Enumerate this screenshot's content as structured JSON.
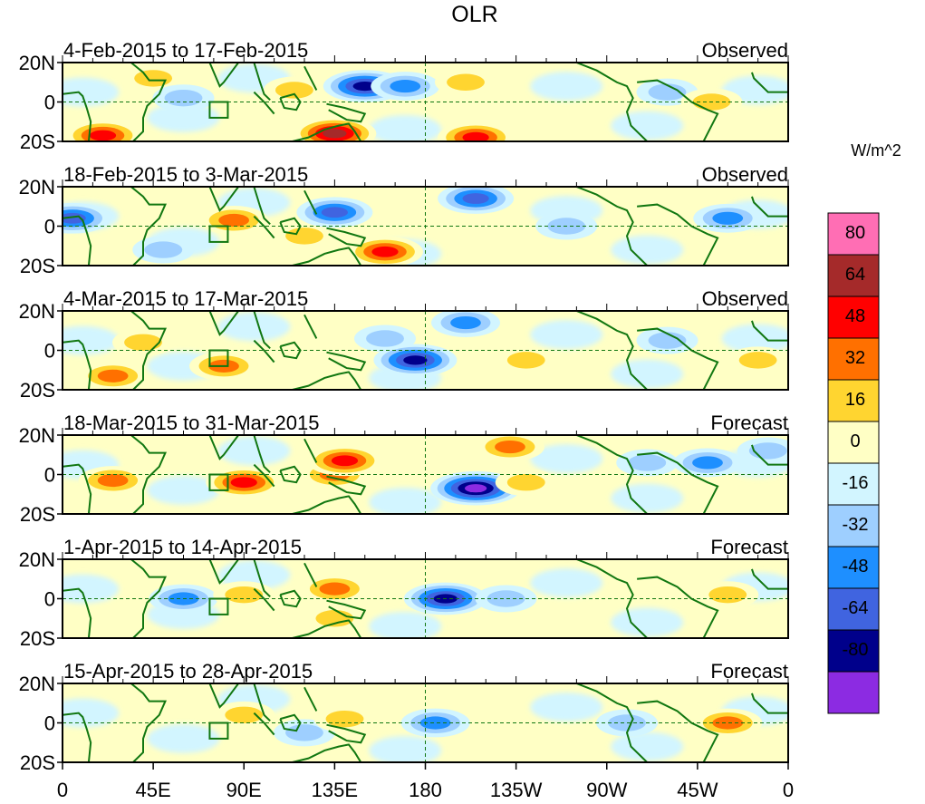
{
  "chart_data": {
    "type": "heatmap",
    "title": "OLR",
    "colorbar": {
      "unit_label": "W/m^2",
      "levels": [
        80,
        64,
        48,
        32,
        16,
        0,
        -16,
        -32,
        -48,
        -64,
        -80
      ],
      "colors": [
        "#ff6eb4",
        "#a52a2a",
        "#ff0000",
        "#ff7000",
        "#ffd530",
        "#ffffc5",
        "#d2f5ff",
        "#9ecfff",
        "#1e8fff",
        "#4064e0",
        "#00008b",
        "#8c2be2"
      ]
    },
    "x_axis": {
      "tick_labels": [
        "0",
        "45E",
        "90E",
        "135E",
        "180",
        "135W",
        "90W",
        "45W",
        "0"
      ],
      "lon_range": [
        0,
        360
      ]
    },
    "y_axis": {
      "tick_labels": [
        "20N",
        "0",
        "20S"
      ],
      "lat_range": [
        -20,
        20
      ]
    },
    "panels": [
      {
        "period": "4-Feb-2015 to 17-Feb-2015",
        "kind": "Observed",
        "anomalies": [
          {
            "lon": 20,
            "lat": -17,
            "value": 48
          },
          {
            "lon": 45,
            "lat": 12,
            "value": 16
          },
          {
            "lon": 60,
            "lat": 2,
            "value": -16
          },
          {
            "lon": 115,
            "lat": 6,
            "value": 16
          },
          {
            "lon": 135,
            "lat": -16,
            "value": 64
          },
          {
            "lon": 150,
            "lat": 8,
            "value": -64
          },
          {
            "lon": 170,
            "lat": 8,
            "value": -32
          },
          {
            "lon": 200,
            "lat": 10,
            "value": 16
          },
          {
            "lon": 205,
            "lat": -18,
            "value": 48
          },
          {
            "lon": 300,
            "lat": 5,
            "value": -16
          },
          {
            "lon": 322,
            "lat": 0,
            "value": 16
          }
        ]
      },
      {
        "period": "18-Feb-2015 to 3-Mar-2015",
        "kind": "Observed",
        "anomalies": [
          {
            "lon": 5,
            "lat": 4,
            "value": -48
          },
          {
            "lon": 50,
            "lat": -12,
            "value": -16
          },
          {
            "lon": 85,
            "lat": 3,
            "value": 32
          },
          {
            "lon": 120,
            "lat": -5,
            "value": 16
          },
          {
            "lon": 135,
            "lat": 7,
            "value": -48
          },
          {
            "lon": 160,
            "lat": -13,
            "value": 48
          },
          {
            "lon": 205,
            "lat": 14,
            "value": -48
          },
          {
            "lon": 250,
            "lat": 0,
            "value": -16
          },
          {
            "lon": 330,
            "lat": 4,
            "value": -32
          }
        ]
      },
      {
        "period": "4-Mar-2015 to 17-Mar-2015",
        "kind": "Observed",
        "anomalies": [
          {
            "lon": 25,
            "lat": -13,
            "value": 32
          },
          {
            "lon": 40,
            "lat": 4,
            "value": 16
          },
          {
            "lon": 80,
            "lat": -8,
            "value": 32
          },
          {
            "lon": 160,
            "lat": 6,
            "value": -16
          },
          {
            "lon": 175,
            "lat": -5,
            "value": -64
          },
          {
            "lon": 200,
            "lat": 14,
            "value": -32
          },
          {
            "lon": 230,
            "lat": -5,
            "value": 16
          },
          {
            "lon": 300,
            "lat": 5,
            "value": -16
          },
          {
            "lon": 345,
            "lat": -5,
            "value": 16
          }
        ]
      },
      {
        "period": "18-Mar-2015 to 31-Mar-2015",
        "kind": "Forecast",
        "anomalies": [
          {
            "lon": 25,
            "lat": -3,
            "value": 32
          },
          {
            "lon": 90,
            "lat": -4,
            "value": 48
          },
          {
            "lon": 135,
            "lat": 0,
            "value": 32
          },
          {
            "lon": 140,
            "lat": 7,
            "value": 48
          },
          {
            "lon": 205,
            "lat": -7,
            "value": -80
          },
          {
            "lon": 222,
            "lat": 14,
            "value": 32
          },
          {
            "lon": 230,
            "lat": -4,
            "value": 16
          },
          {
            "lon": 290,
            "lat": 6,
            "value": -16
          },
          {
            "lon": 320,
            "lat": 6,
            "value": -32
          },
          {
            "lon": 350,
            "lat": 12,
            "value": -16
          }
        ]
      },
      {
        "period": "1-Apr-2015 to 14-Apr-2015",
        "kind": "Forecast",
        "anomalies": [
          {
            "lon": 60,
            "lat": 0,
            "value": -32
          },
          {
            "lon": 90,
            "lat": 2,
            "value": 16
          },
          {
            "lon": 135,
            "lat": 5,
            "value": 32
          },
          {
            "lon": 135,
            "lat": -10,
            "value": 16
          },
          {
            "lon": 190,
            "lat": 0,
            "value": -64
          },
          {
            "lon": 220,
            "lat": 0,
            "value": -16
          },
          {
            "lon": 330,
            "lat": 2,
            "value": 16
          }
        ]
      },
      {
        "period": "15-Apr-2015 to 28-Apr-2015",
        "kind": "Forecast",
        "anomalies": [
          {
            "lon": 90,
            "lat": 4,
            "value": 16
          },
          {
            "lon": 120,
            "lat": -5,
            "value": -16
          },
          {
            "lon": 140,
            "lat": 2,
            "value": 16
          },
          {
            "lon": 185,
            "lat": 0,
            "value": -32
          },
          {
            "lon": 280,
            "lat": 0,
            "value": -16
          },
          {
            "lon": 330,
            "lat": 0,
            "value": 32
          }
        ]
      }
    ]
  }
}
